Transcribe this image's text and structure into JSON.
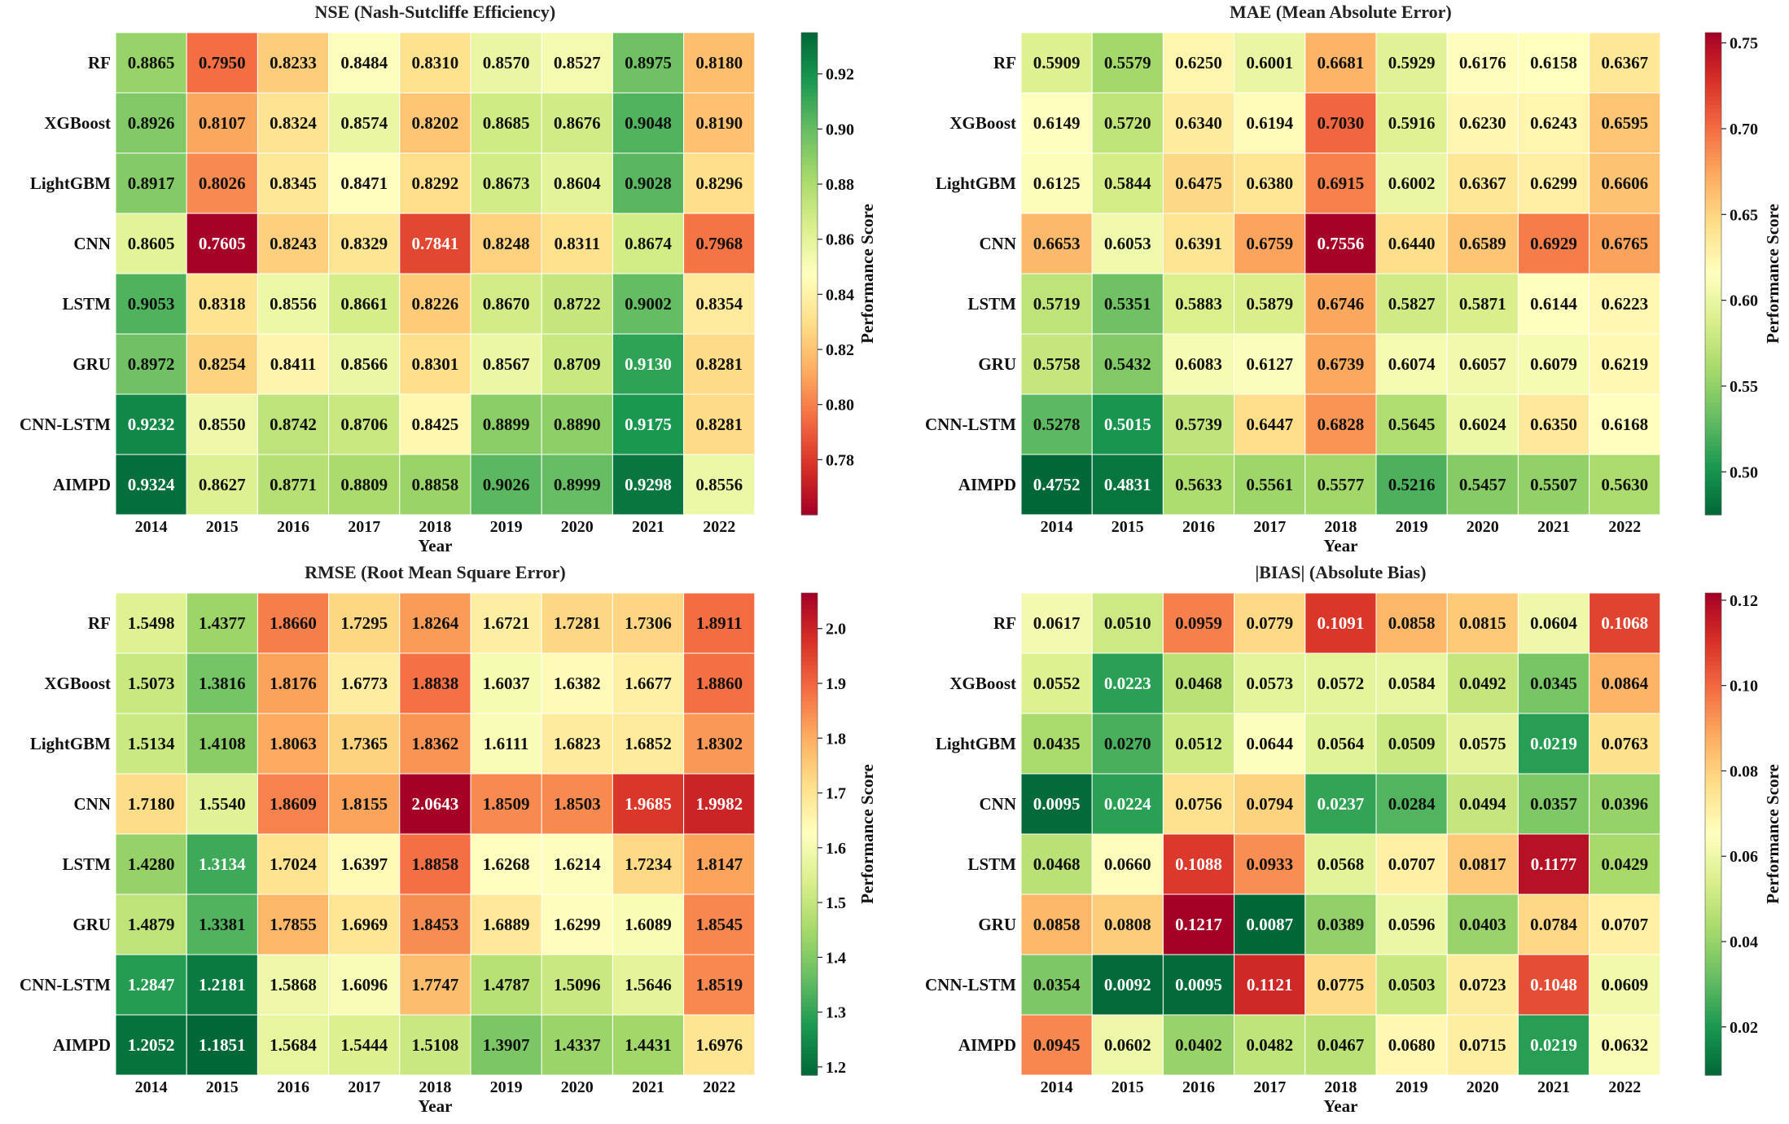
{
  "figure": {
    "xlabel": "Year",
    "colorbar_label": "Performance Score"
  },
  "chart_data": [
    {
      "type": "heatmap",
      "title": "NSE (Nash-Sutcliffe Efficiency)",
      "xlabel": "Year",
      "ylabel": "",
      "colorbar_label": "Performance Score",
      "colormap": "RdYlGn",
      "higher_is_better": true,
      "vmin": 0.76,
      "vmax": 0.935,
      "colorbar_ticks": [
        "0.78",
        "0.80",
        "0.82",
        "0.84",
        "0.86",
        "0.88",
        "0.90",
        "0.92"
      ],
      "rows": [
        "RF",
        "XGBoost",
        "LightGBM",
        "CNN",
        "LSTM",
        "GRU",
        "CNN-LSTM",
        "AIMPD"
      ],
      "columns": [
        "2014",
        "2015",
        "2016",
        "2017",
        "2018",
        "2019",
        "2020",
        "2021",
        "2022"
      ],
      "values": [
        [
          "0.8865",
          "0.7950",
          "0.8233",
          "0.8484",
          "0.8310",
          "0.8570",
          "0.8527",
          "0.8975",
          "0.8180"
        ],
        [
          "0.8926",
          "0.8107",
          "0.8324",
          "0.8574",
          "0.8202",
          "0.8685",
          "0.8676",
          "0.9048",
          "0.8190"
        ],
        [
          "0.8917",
          "0.8026",
          "0.8345",
          "0.8471",
          "0.8292",
          "0.8673",
          "0.8604",
          "0.9028",
          "0.8296"
        ],
        [
          "0.8605",
          "0.7605",
          "0.8243",
          "0.8329",
          "0.7841",
          "0.8248",
          "0.8311",
          "0.8674",
          "0.7968"
        ],
        [
          "0.9053",
          "0.8318",
          "0.8556",
          "0.8661",
          "0.8226",
          "0.8670",
          "0.8722",
          "0.9002",
          "0.8354"
        ],
        [
          "0.8972",
          "0.8254",
          "0.8411",
          "0.8566",
          "0.8301",
          "0.8567",
          "0.8709",
          "0.9130",
          "0.8281"
        ],
        [
          "0.9232",
          "0.8550",
          "0.8742",
          "0.8706",
          "0.8425",
          "0.8899",
          "0.8890",
          "0.9175",
          "0.8281"
        ],
        [
          "0.9324",
          "0.8627",
          "0.8771",
          "0.8809",
          "0.8858",
          "0.9026",
          "0.8999",
          "0.9298",
          "0.8556"
        ]
      ]
    },
    {
      "type": "heatmap",
      "title": "MAE (Mean Absolute Error)",
      "xlabel": "Year",
      "ylabel": "",
      "colorbar_label": "Performance Score",
      "colormap": "RdYlGn_r",
      "higher_is_better": false,
      "vmin": 0.475,
      "vmax": 0.756,
      "colorbar_ticks": [
        "0.50",
        "0.55",
        "0.60",
        "0.65",
        "0.70",
        "0.75"
      ],
      "rows": [
        "RF",
        "XGBoost",
        "LightGBM",
        "CNN",
        "LSTM",
        "GRU",
        "CNN-LSTM",
        "AIMPD"
      ],
      "columns": [
        "2014",
        "2015",
        "2016",
        "2017",
        "2018",
        "2019",
        "2020",
        "2021",
        "2022"
      ],
      "values": [
        [
          "0.5909",
          "0.5579",
          "0.6250",
          "0.6001",
          "0.6681",
          "0.5929",
          "0.6176",
          "0.6158",
          "0.6367"
        ],
        [
          "0.6149",
          "0.5720",
          "0.6340",
          "0.6194",
          "0.7030",
          "0.5916",
          "0.6230",
          "0.6243",
          "0.6595"
        ],
        [
          "0.6125",
          "0.5844",
          "0.6475",
          "0.6380",
          "0.6915",
          "0.6002",
          "0.6367",
          "0.6299",
          "0.6606"
        ],
        [
          "0.6653",
          "0.6053",
          "0.6391",
          "0.6759",
          "0.7556",
          "0.6440",
          "0.6589",
          "0.6929",
          "0.6765"
        ],
        [
          "0.5719",
          "0.5351",
          "0.5883",
          "0.5879",
          "0.6746",
          "0.5827",
          "0.5871",
          "0.6144",
          "0.6223"
        ],
        [
          "0.5758",
          "0.5432",
          "0.6083",
          "0.6127",
          "0.6739",
          "0.6074",
          "0.6057",
          "0.6079",
          "0.6219"
        ],
        [
          "0.5278",
          "0.5015",
          "0.5739",
          "0.6447",
          "0.6828",
          "0.5645",
          "0.6024",
          "0.6350",
          "0.6168"
        ],
        [
          "0.4752",
          "0.4831",
          "0.5633",
          "0.5561",
          "0.5577",
          "0.5216",
          "0.5457",
          "0.5507",
          "0.5630"
        ]
      ]
    },
    {
      "type": "heatmap",
      "title": "RMSE (Root Mean Square Error)",
      "xlabel": "Year",
      "ylabel": "",
      "colorbar_label": "Performance Score",
      "colormap": "RdYlGn_r",
      "higher_is_better": false,
      "vmin": 1.185,
      "vmax": 2.065,
      "colorbar_ticks": [
        "1.2",
        "1.3",
        "1.4",
        "1.5",
        "1.6",
        "1.7",
        "1.8",
        "1.9",
        "2.0"
      ],
      "rows": [
        "RF",
        "XGBoost",
        "LightGBM",
        "CNN",
        "LSTM",
        "GRU",
        "CNN-LSTM",
        "AIMPD"
      ],
      "columns": [
        "2014",
        "2015",
        "2016",
        "2017",
        "2018",
        "2019",
        "2020",
        "2021",
        "2022"
      ],
      "values": [
        [
          "1.5498",
          "1.4377",
          "1.8660",
          "1.7295",
          "1.8264",
          "1.6721",
          "1.7281",
          "1.7306",
          "1.8911"
        ],
        [
          "1.5073",
          "1.3816",
          "1.8176",
          "1.6773",
          "1.8838",
          "1.6037",
          "1.6382",
          "1.6677",
          "1.8860"
        ],
        [
          "1.5134",
          "1.4108",
          "1.8063",
          "1.7365",
          "1.8362",
          "1.6111",
          "1.6823",
          "1.6852",
          "1.8302"
        ],
        [
          "1.7180",
          "1.5540",
          "1.8609",
          "1.8155",
          "2.0643",
          "1.8509",
          "1.8503",
          "1.9685",
          "1.9982"
        ],
        [
          "1.4280",
          "1.3134",
          "1.7024",
          "1.6397",
          "1.8858",
          "1.6268",
          "1.6214",
          "1.7234",
          "1.8147"
        ],
        [
          "1.4879",
          "1.3381",
          "1.7855",
          "1.6969",
          "1.8453",
          "1.6889",
          "1.6299",
          "1.6089",
          "1.8545"
        ],
        [
          "1.2847",
          "1.2181",
          "1.5868",
          "1.6096",
          "1.7747",
          "1.4787",
          "1.5096",
          "1.5646",
          "1.8519"
        ],
        [
          "1.2052",
          "1.1851",
          "1.5684",
          "1.5444",
          "1.5108",
          "1.3907",
          "1.4337",
          "1.4431",
          "1.6976"
        ]
      ]
    },
    {
      "type": "heatmap",
      "title": "|BIAS| (Absolute Bias)",
      "xlabel": "Year",
      "ylabel": "",
      "colorbar_label": "Performance Score",
      "colormap": "RdYlGn_r",
      "higher_is_better": false,
      "vmin": 0.0087,
      "vmax": 0.1217,
      "colorbar_ticks": [
        "0.02",
        "0.04",
        "0.06",
        "0.08",
        "0.10",
        "0.12"
      ],
      "rows": [
        "RF",
        "XGBoost",
        "LightGBM",
        "CNN",
        "LSTM",
        "GRU",
        "CNN-LSTM",
        "AIMPD"
      ],
      "columns": [
        "2014",
        "2015",
        "2016",
        "2017",
        "2018",
        "2019",
        "2020",
        "2021",
        "2022"
      ],
      "values": [
        [
          "0.0617",
          "0.0510",
          "0.0959",
          "0.0779",
          "0.1091",
          "0.0858",
          "0.0815",
          "0.0604",
          "0.1068"
        ],
        [
          "0.0552",
          "0.0223",
          "0.0468",
          "0.0573",
          "0.0572",
          "0.0584",
          "0.0492",
          "0.0345",
          "0.0864"
        ],
        [
          "0.0435",
          "0.0270",
          "0.0512",
          "0.0644",
          "0.0564",
          "0.0509",
          "0.0575",
          "0.0219",
          "0.0763"
        ],
        [
          "0.0095",
          "0.0224",
          "0.0756",
          "0.0794",
          "0.0237",
          "0.0284",
          "0.0494",
          "0.0357",
          "0.0396"
        ],
        [
          "0.0468",
          "0.0660",
          "0.1088",
          "0.0933",
          "0.0568",
          "0.0707",
          "0.0817",
          "0.1177",
          "0.0429"
        ],
        [
          "0.0858",
          "0.0808",
          "0.1217",
          "0.0087",
          "0.0389",
          "0.0596",
          "0.0403",
          "0.0784",
          "0.0707"
        ],
        [
          "0.0354",
          "0.0092",
          "0.0095",
          "0.1121",
          "0.0775",
          "0.0503",
          "0.0723",
          "0.1048",
          "0.0609"
        ],
        [
          "0.0945",
          "0.0602",
          "0.0402",
          "0.0482",
          "0.0467",
          "0.0680",
          "0.0715",
          "0.0219",
          "0.0632"
        ]
      ]
    }
  ]
}
